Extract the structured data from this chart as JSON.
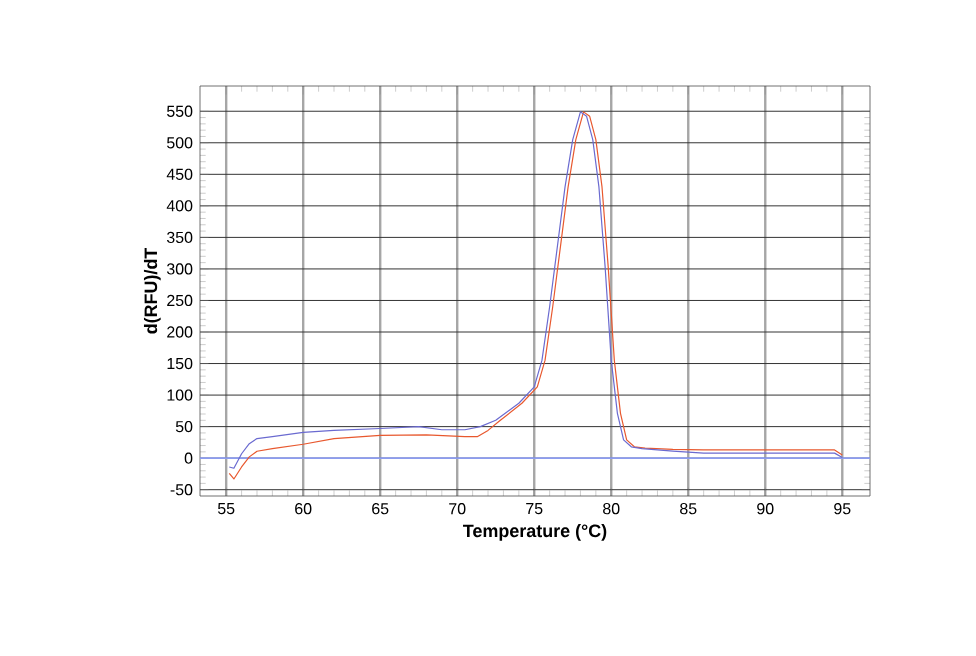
{
  "chart_data": {
    "type": "line",
    "xlabel": "Temperature (°C)",
    "ylabel": "d(RFU)/dT",
    "xlim": [
      53.3,
      96.8
    ],
    "ylim": [
      -60,
      590
    ],
    "xticks": [
      55,
      60,
      65,
      70,
      75,
      80,
      85,
      90,
      95
    ],
    "yticks": [
      -50,
      0,
      50,
      100,
      150,
      200,
      250,
      300,
      350,
      400,
      450,
      500,
      550
    ],
    "grid": true,
    "marker": "none",
    "line_style": "solid",
    "ref_lines": [
      {
        "axis": "y",
        "value": 0,
        "color": "#8c9cf0"
      }
    ],
    "series": [
      {
        "color": "#6a6ad0",
        "x": [
          55.2,
          55.5,
          56,
          56.5,
          57,
          58,
          60,
          62,
          65,
          67.5,
          69,
          70.5,
          71.5,
          72.5,
          74,
          75,
          75.5,
          76,
          76.5,
          77,
          77.5,
          78,
          78.4,
          78.8,
          79.2,
          79.6,
          80,
          80.4,
          80.8,
          81.3,
          82,
          84,
          86,
          90,
          94.5,
          95
        ],
        "values": [
          -14,
          -16,
          7,
          23,
          31,
          34,
          41,
          44,
          47,
          50,
          45,
          45,
          50,
          60,
          87,
          113,
          155,
          240,
          335,
          430,
          505,
          549,
          542,
          505,
          430,
          304,
          155,
          71,
          29,
          18,
          15,
          11,
          8,
          8,
          8,
          1
        ]
      },
      {
        "color": "#e8582e",
        "x": [
          55.2,
          55.5,
          56,
          56.5,
          57,
          58,
          60,
          62,
          65,
          68,
          70.5,
          71.3,
          72,
          72.7,
          74.2,
          75.2,
          75.7,
          76.2,
          76.7,
          77.2,
          77.7,
          78.2,
          78.6,
          79,
          79.4,
          79.8,
          80.2,
          80.6,
          81,
          81.5,
          82.2,
          84,
          86,
          90,
          94.5,
          95
        ],
        "values": [
          -24,
          -33,
          -14,
          2,
          11,
          15,
          22,
          31,
          36,
          37,
          34,
          34,
          44,
          58,
          87,
          113,
          155,
          240,
          335,
          430,
          505,
          549,
          542,
          505,
          430,
          304,
          155,
          71,
          29,
          18,
          16,
          14,
          13,
          13,
          13,
          5
        ]
      }
    ]
  }
}
